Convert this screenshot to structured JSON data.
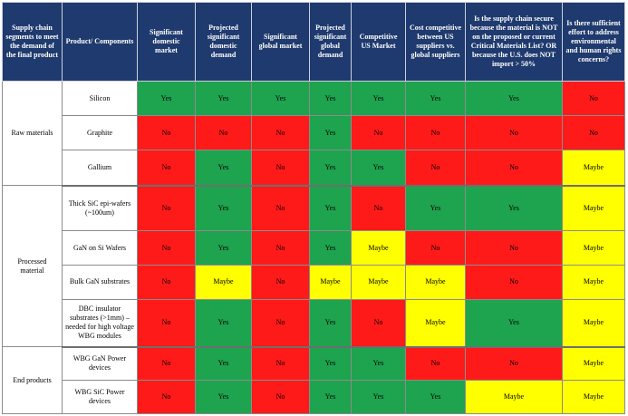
{
  "headers": [
    "Supply chain segments to meet the demand of the final product",
    "Product/ Components",
    "Significant domestic market",
    "Projected significant domestic demand",
    "Significant global market",
    "Projected significant global demand",
    "Competitive US Market",
    "Cost competitive between US suppliers vs. global suppliers",
    "Is the supply chain secure because the material is NOT on the proposed or current Critical Materials List? OR because the U.S. does NOT import > 50%",
    "Is there sufficient effort to address environmental and human rights concerns?"
  ],
  "segments": [
    "Raw materials",
    "Processed material",
    "End products"
  ],
  "rows": [
    {
      "product": "Silicon",
      "cells": [
        "Yes",
        "Yes",
        "Yes",
        "Yes",
        "Yes",
        "Yes",
        "Yes",
        "No"
      ]
    },
    {
      "product": "Graphite",
      "cells": [
        "No",
        "No",
        "No",
        "Yes",
        "No",
        "No",
        "No",
        "No"
      ]
    },
    {
      "product": "Gallium",
      "cells": [
        "No",
        "Yes",
        "No",
        "Yes",
        "Yes",
        "No",
        "No",
        "Maybe"
      ]
    },
    {
      "product": "Thick SiC epi-wafers (~100um)",
      "cells": [
        "No",
        "Yes",
        "No",
        "Yes",
        "No",
        "Yes",
        "Yes",
        "Maybe"
      ]
    },
    {
      "product": "GaN on Si Wafers",
      "cells": [
        "No",
        "Yes",
        "No",
        "Yes",
        "Maybe",
        "No",
        "No",
        "Maybe"
      ]
    },
    {
      "product": "Bulk GaN substrates",
      "cells": [
        "No",
        "Maybe",
        "No",
        "Maybe",
        "Maybe",
        "Maybe",
        "No",
        "Maybe"
      ]
    },
    {
      "product": "DBC insulator substrates (>1mm) – needed for high voltage WBG modules",
      "cells": [
        "No",
        "Yes",
        "No",
        "Yes",
        "No",
        "Maybe",
        "Yes",
        "Maybe"
      ]
    },
    {
      "product": "WBG GaN Power devices",
      "cells": [
        "No",
        "Yes",
        "No",
        "Yes",
        "Yes",
        "No",
        "No",
        "Maybe"
      ]
    },
    {
      "product": "WBG SiC Power devices",
      "cells": [
        "No",
        "Yes",
        "No",
        "Yes",
        "Yes",
        "Yes",
        "Maybe",
        "Maybe"
      ]
    }
  ],
  "colors": {
    "yes": "#1ea34e",
    "no": "#ff1a1a",
    "maybe": "#ffff00",
    "header": "#1f3a6e"
  }
}
